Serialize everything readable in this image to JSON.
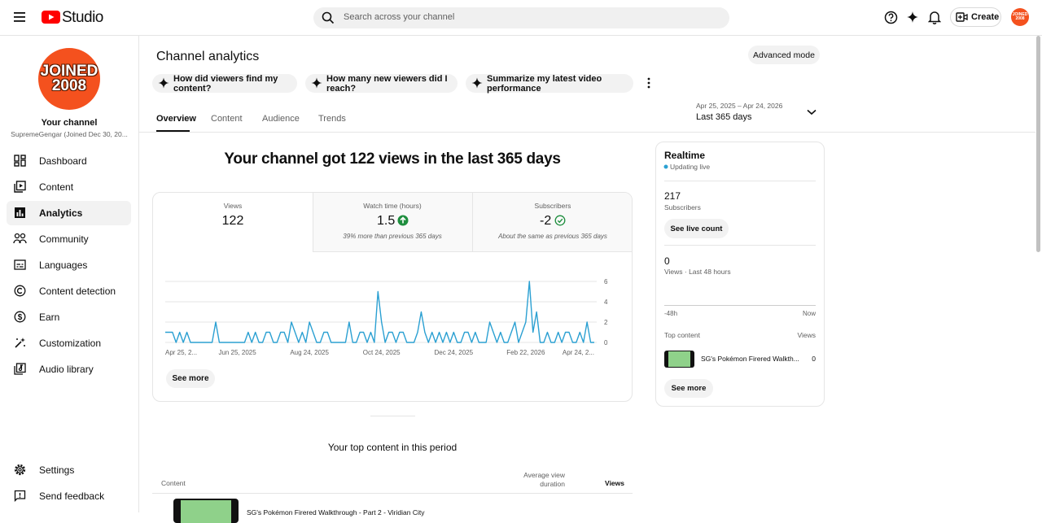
{
  "header": {
    "logo": "Studio",
    "search_placeholder": "Search across your channel",
    "create": "Create",
    "avatar": [
      "JOINED",
      "2008"
    ]
  },
  "sidebar": {
    "avatar": [
      "JOINED",
      "2008"
    ],
    "channel_title": "Your channel",
    "channel_subtitle": "SupremeGengar (Joined Dec 30, 20...",
    "nav": [
      "Dashboard",
      "Content",
      "Analytics",
      "Community",
      "Languages",
      "Content detection",
      "Earn",
      "Customization",
      "Audio library"
    ],
    "bottom": [
      "Settings",
      "Send feedback"
    ]
  },
  "main": {
    "title": "Channel analytics",
    "advanced_mode": "Advanced mode",
    "prompts": [
      "How did viewers find my content?",
      "How many new viewers did I reach?",
      "Summarize my latest video performance"
    ],
    "tabs": [
      "Overview",
      "Content",
      "Audience",
      "Trends"
    ],
    "date_range": "Apr 25, 2025 – Apr 24, 2026",
    "period": "Last 365 days",
    "headline": "Your channel got 122 views in the last 365 days",
    "metrics": [
      {
        "label": "Views",
        "value": "122"
      },
      {
        "label": "Watch time (hours)",
        "value": "1.5",
        "note": "39% more than previous 365 days"
      },
      {
        "label": "Subscribers",
        "value": "-2",
        "note": "About the same as previous 365 days"
      }
    ],
    "see_more": "See more",
    "top_content": {
      "title": "Your top content in this period",
      "headers": [
        "Content",
        "Average view duration",
        "Views"
      ],
      "row": "SG's Pokémon Firered Walkthrough - Part 2 - Viridian City"
    }
  },
  "realtime": {
    "title": "Realtime",
    "status": "Updating live",
    "subscribers_value": "217",
    "subscribers_label": "Subscribers",
    "live_count_button": "See live count",
    "views_value": "0",
    "views_label": "Views · Last 48 hours",
    "axis_start": "-48h",
    "axis_end": "Now",
    "top_content": "Top content",
    "views_header": "Views",
    "video_title": "SG's Pokémon Firered Walkth...",
    "video_views": "0",
    "see_more": "See more"
  },
  "chart_data": {
    "type": "line",
    "color": "#2ba0d2",
    "grid": true,
    "ylim": [
      0,
      6
    ],
    "yticks": [
      0,
      2,
      4,
      6
    ],
    "categories": [
      "Apr 25, 2...",
      null,
      null,
      null,
      null,
      null,
      null,
      null,
      null,
      null,
      null,
      null,
      null,
      null,
      null,
      null,
      null,
      null,
      null,
      null,
      "Jun 25, 2025",
      null,
      null,
      null,
      null,
      null,
      null,
      null,
      null,
      null,
      null,
      null,
      null,
      null,
      null,
      null,
      null,
      null,
      null,
      null,
      "Aug 24, 2025",
      null,
      null,
      null,
      null,
      null,
      null,
      null,
      null,
      null,
      null,
      null,
      null,
      null,
      null,
      null,
      null,
      null,
      null,
      null,
      "Oct 24, 2025",
      null,
      null,
      null,
      null,
      null,
      null,
      null,
      null,
      null,
      null,
      null,
      null,
      null,
      null,
      null,
      null,
      null,
      null,
      null,
      "Dec 24, 2025",
      null,
      null,
      null,
      null,
      null,
      null,
      null,
      null,
      null,
      null,
      null,
      null,
      null,
      null,
      null,
      null,
      null,
      null,
      null,
      "Feb 22, 2026",
      null,
      null,
      null,
      null,
      null,
      null,
      null,
      null,
      null,
      null,
      null,
      null,
      null,
      null,
      null,
      null,
      null,
      null,
      "Apr 24, 2..."
    ],
    "values": [
      1,
      1,
      1,
      0,
      1,
      0,
      1,
      0,
      0,
      0,
      0,
      0,
      0,
      0,
      2,
      0,
      0,
      0,
      0,
      0,
      0,
      0,
      0,
      1,
      0,
      1,
      0,
      0,
      1,
      1,
      0,
      0,
      1,
      1,
      0,
      2,
      1,
      0,
      1,
      0,
      2,
      1,
      0,
      0,
      1,
      1,
      0,
      0,
      0,
      0,
      0,
      2,
      0,
      0,
      1,
      1,
      0,
      1,
      0,
      5,
      2,
      0,
      1,
      1,
      0,
      1,
      1,
      0,
      0,
      0,
      1,
      3,
      1,
      0,
      1,
      0,
      1,
      0,
      1,
      0,
      1,
      0,
      0,
      1,
      1,
      0,
      1,
      0,
      0,
      0,
      2,
      1,
      0,
      1,
      0,
      0,
      1,
      2,
      0,
      1,
      2,
      6,
      1,
      3,
      0,
      0,
      1,
      0,
      0,
      1,
      0,
      1,
      1,
      0,
      0,
      1,
      0,
      2,
      0,
      0
    ]
  }
}
